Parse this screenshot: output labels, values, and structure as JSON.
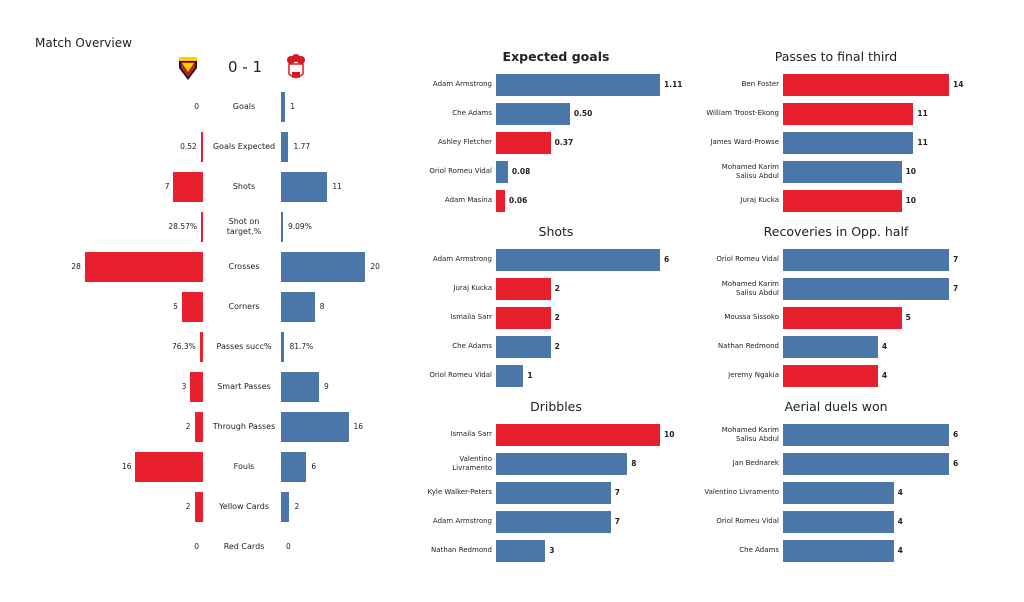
{
  "colors": {
    "home": "#e8202e",
    "away": "#4a76a8"
  },
  "overview": {
    "title": "Match Overview",
    "score": "0 - 1",
    "home_logo": "watford-crest",
    "away_logo": "southampton-crest",
    "rows": [
      {
        "label": "Goals",
        "home": "0",
        "away": "1"
      },
      {
        "label": "Goals Expected",
        "home": "0.52",
        "away": "1.77"
      },
      {
        "label": "Shots",
        "home": "7",
        "away": "11"
      },
      {
        "label": "Shot on target,%",
        "home": "28.57%",
        "away": "9.09%"
      },
      {
        "label": "Crosses",
        "home": "28",
        "away": "20"
      },
      {
        "label": "Corners",
        "home": "5",
        "away": "8"
      },
      {
        "label": "Passes succ%",
        "home": "76.3%",
        "away": "81.7%"
      },
      {
        "label": "Smart Passes",
        "home": "3",
        "away": "9"
      },
      {
        "label": "Through Passes",
        "home": "2",
        "away": "16"
      },
      {
        "label": "Fouls",
        "home": "16",
        "away": "6"
      },
      {
        "label": "Yellow Cards",
        "home": "2",
        "away": "2"
      },
      {
        "label": "Red Cards",
        "home": "0",
        "away": "0"
      }
    ]
  },
  "chart_data": [
    {
      "type": "bar",
      "orientation": "horizontal",
      "title": "Expected goals",
      "categories": [
        "Adam Armstrong",
        "Che Adams",
        "Ashley Fletcher",
        "Oriol Romeu Vidal",
        "Adam Masina"
      ],
      "values": [
        1.11,
        0.5,
        0.37,
        0.08,
        0.06
      ],
      "labels": [
        "1.11",
        "0.50",
        "0.37",
        "0.08",
        "0.06"
      ],
      "colors": [
        "#4a76a8",
        "#4a76a8",
        "#e8202e",
        "#4a76a8",
        "#e8202e"
      ]
    },
    {
      "type": "bar",
      "orientation": "horizontal",
      "title": "Passes to final third",
      "categories": [
        "Ben Foster",
        "William Troost-Ekong",
        "James  Ward-Prowse",
        "Mohamed Karim\nSalisu Abdul",
        "Juraj Kucka"
      ],
      "values": [
        14,
        11,
        11,
        10,
        10
      ],
      "labels": [
        "14",
        "11",
        "11",
        "10",
        "10"
      ],
      "colors": [
        "#e8202e",
        "#e8202e",
        "#4a76a8",
        "#4a76a8",
        "#e8202e"
      ]
    },
    {
      "type": "bar",
      "orientation": "horizontal",
      "title": "Shots",
      "categories": [
        "Adam Armstrong",
        "Juraj Kucka",
        "Ismaila Sarr",
        "Che Adams",
        "Oriol Romeu Vidal"
      ],
      "values": [
        6,
        2,
        2,
        2,
        1
      ],
      "labels": [
        "6",
        "2",
        "2",
        "2",
        "1"
      ],
      "colors": [
        "#4a76a8",
        "#e8202e",
        "#e8202e",
        "#4a76a8",
        "#4a76a8"
      ]
    },
    {
      "type": "bar",
      "orientation": "horizontal",
      "title": "Recoveries in Opp. half",
      "categories": [
        "Oriol Romeu Vidal",
        "Mohamed Karim\nSalisu Abdul",
        "Moussa Sissoko",
        "Nathan Redmond",
        "Jeremy Ngakia"
      ],
      "values": [
        7,
        7,
        5,
        4,
        4
      ],
      "labels": [
        "7",
        "7",
        "5",
        "4",
        "4"
      ],
      "colors": [
        "#4a76a8",
        "#4a76a8",
        "#e8202e",
        "#4a76a8",
        "#e8202e"
      ]
    },
    {
      "type": "bar",
      "orientation": "horizontal",
      "title": "Dribbles",
      "categories": [
        "Ismaila Sarr",
        "Valentino\nLivramento",
        "Kyle Walker-Peters",
        "Adam Armstrong",
        "Nathan Redmond"
      ],
      "values": [
        10,
        8,
        7,
        7,
        3
      ],
      "labels": [
        "10",
        "8",
        "7",
        "7",
        "3"
      ],
      "colors": [
        "#e8202e",
        "#4a76a8",
        "#4a76a8",
        "#4a76a8",
        "#4a76a8"
      ]
    },
    {
      "type": "bar",
      "orientation": "horizontal",
      "title": "Aerial duels won",
      "categories": [
        "Mohamed Karim\nSalisu Abdul",
        "Jan Bednarek",
        "Valentino Livramento",
        "Oriol Romeu Vidal",
        "Che Adams"
      ],
      "values": [
        6,
        6,
        4,
        4,
        4
      ],
      "labels": [
        "6",
        "6",
        "4",
        "4",
        "4"
      ],
      "colors": [
        "#4a76a8",
        "#4a76a8",
        "#4a76a8",
        "#4a76a8",
        "#4a76a8"
      ]
    }
  ]
}
